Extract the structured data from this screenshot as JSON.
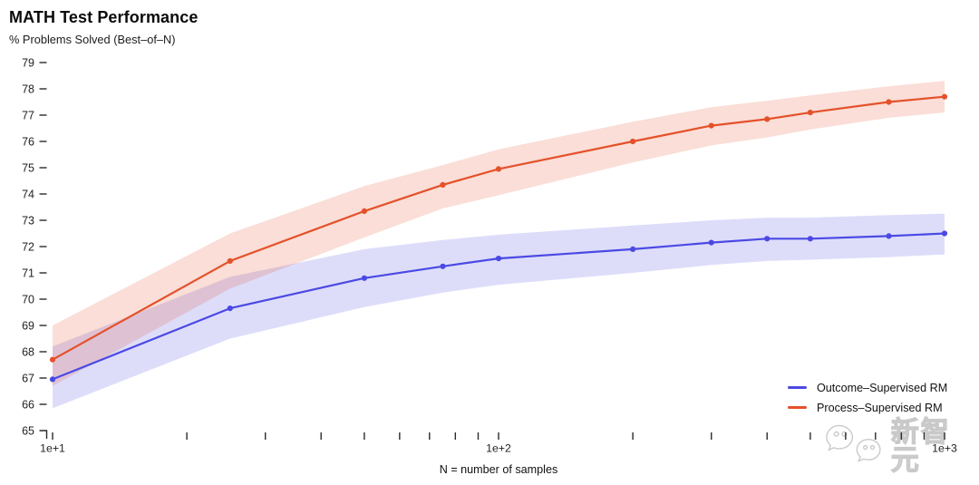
{
  "chart_data": {
    "type": "line",
    "title": "MATH Test Performance",
    "subtitle": "% Problems Solved (Best–of–N)",
    "xlabel": "N = number of samples",
    "ylabel": "% Problems Solved (Best-of-N)",
    "xscale": "log",
    "xlim": [
      10,
      1000
    ],
    "ylim": [
      65,
      79
    ],
    "y_tick_step": 1,
    "grid": false,
    "legend_position": "bottom-right",
    "x": [
      10,
      25,
      50,
      75,
      100,
      200,
      300,
      400,
      500,
      750,
      1000
    ],
    "x_axis": {
      "ticks": [
        10,
        20,
        30,
        40,
        50,
        60,
        70,
        80,
        90,
        100,
        200,
        300,
        400,
        500,
        600,
        700,
        800,
        900,
        1000
      ],
      "tick_labels": [
        {
          "value": 10,
          "label": "1e+1"
        },
        {
          "value": 100,
          "label": "1e+2"
        },
        {
          "value": 1000,
          "label": "1e+3"
        }
      ]
    },
    "series": [
      {
        "name": "Outcome–Supervised RM",
        "color": "#4b49e3",
        "values": [
          66.95,
          69.65,
          70.8,
          71.25,
          71.55,
          71.9,
          72.15,
          72.3,
          72.3,
          72.4,
          72.5
        ],
        "band_upper": [
          68.2,
          70.85,
          71.9,
          72.25,
          72.45,
          72.8,
          73.0,
          73.1,
          73.1,
          73.2,
          73.25
        ],
        "band_lower": [
          65.85,
          68.5,
          69.7,
          70.25,
          70.55,
          71.0,
          71.3,
          71.45,
          71.5,
          71.6,
          71.7
        ]
      },
      {
        "name": "Process–Supervised RM",
        "color": "#e4512a",
        "values": [
          67.7,
          71.45,
          73.35,
          74.35,
          74.95,
          76.0,
          76.6,
          76.85,
          77.1,
          77.5,
          77.7
        ],
        "band_upper": [
          69.0,
          72.5,
          74.3,
          75.1,
          75.7,
          76.75,
          77.3,
          77.55,
          77.75,
          78.1,
          78.3
        ],
        "band_lower": [
          66.7,
          70.4,
          72.35,
          73.45,
          73.95,
          75.2,
          75.85,
          76.15,
          76.45,
          76.9,
          77.1
        ]
      }
    ]
  },
  "watermark": {
    "text": "新智元",
    "icon": "wechat-logo"
  }
}
